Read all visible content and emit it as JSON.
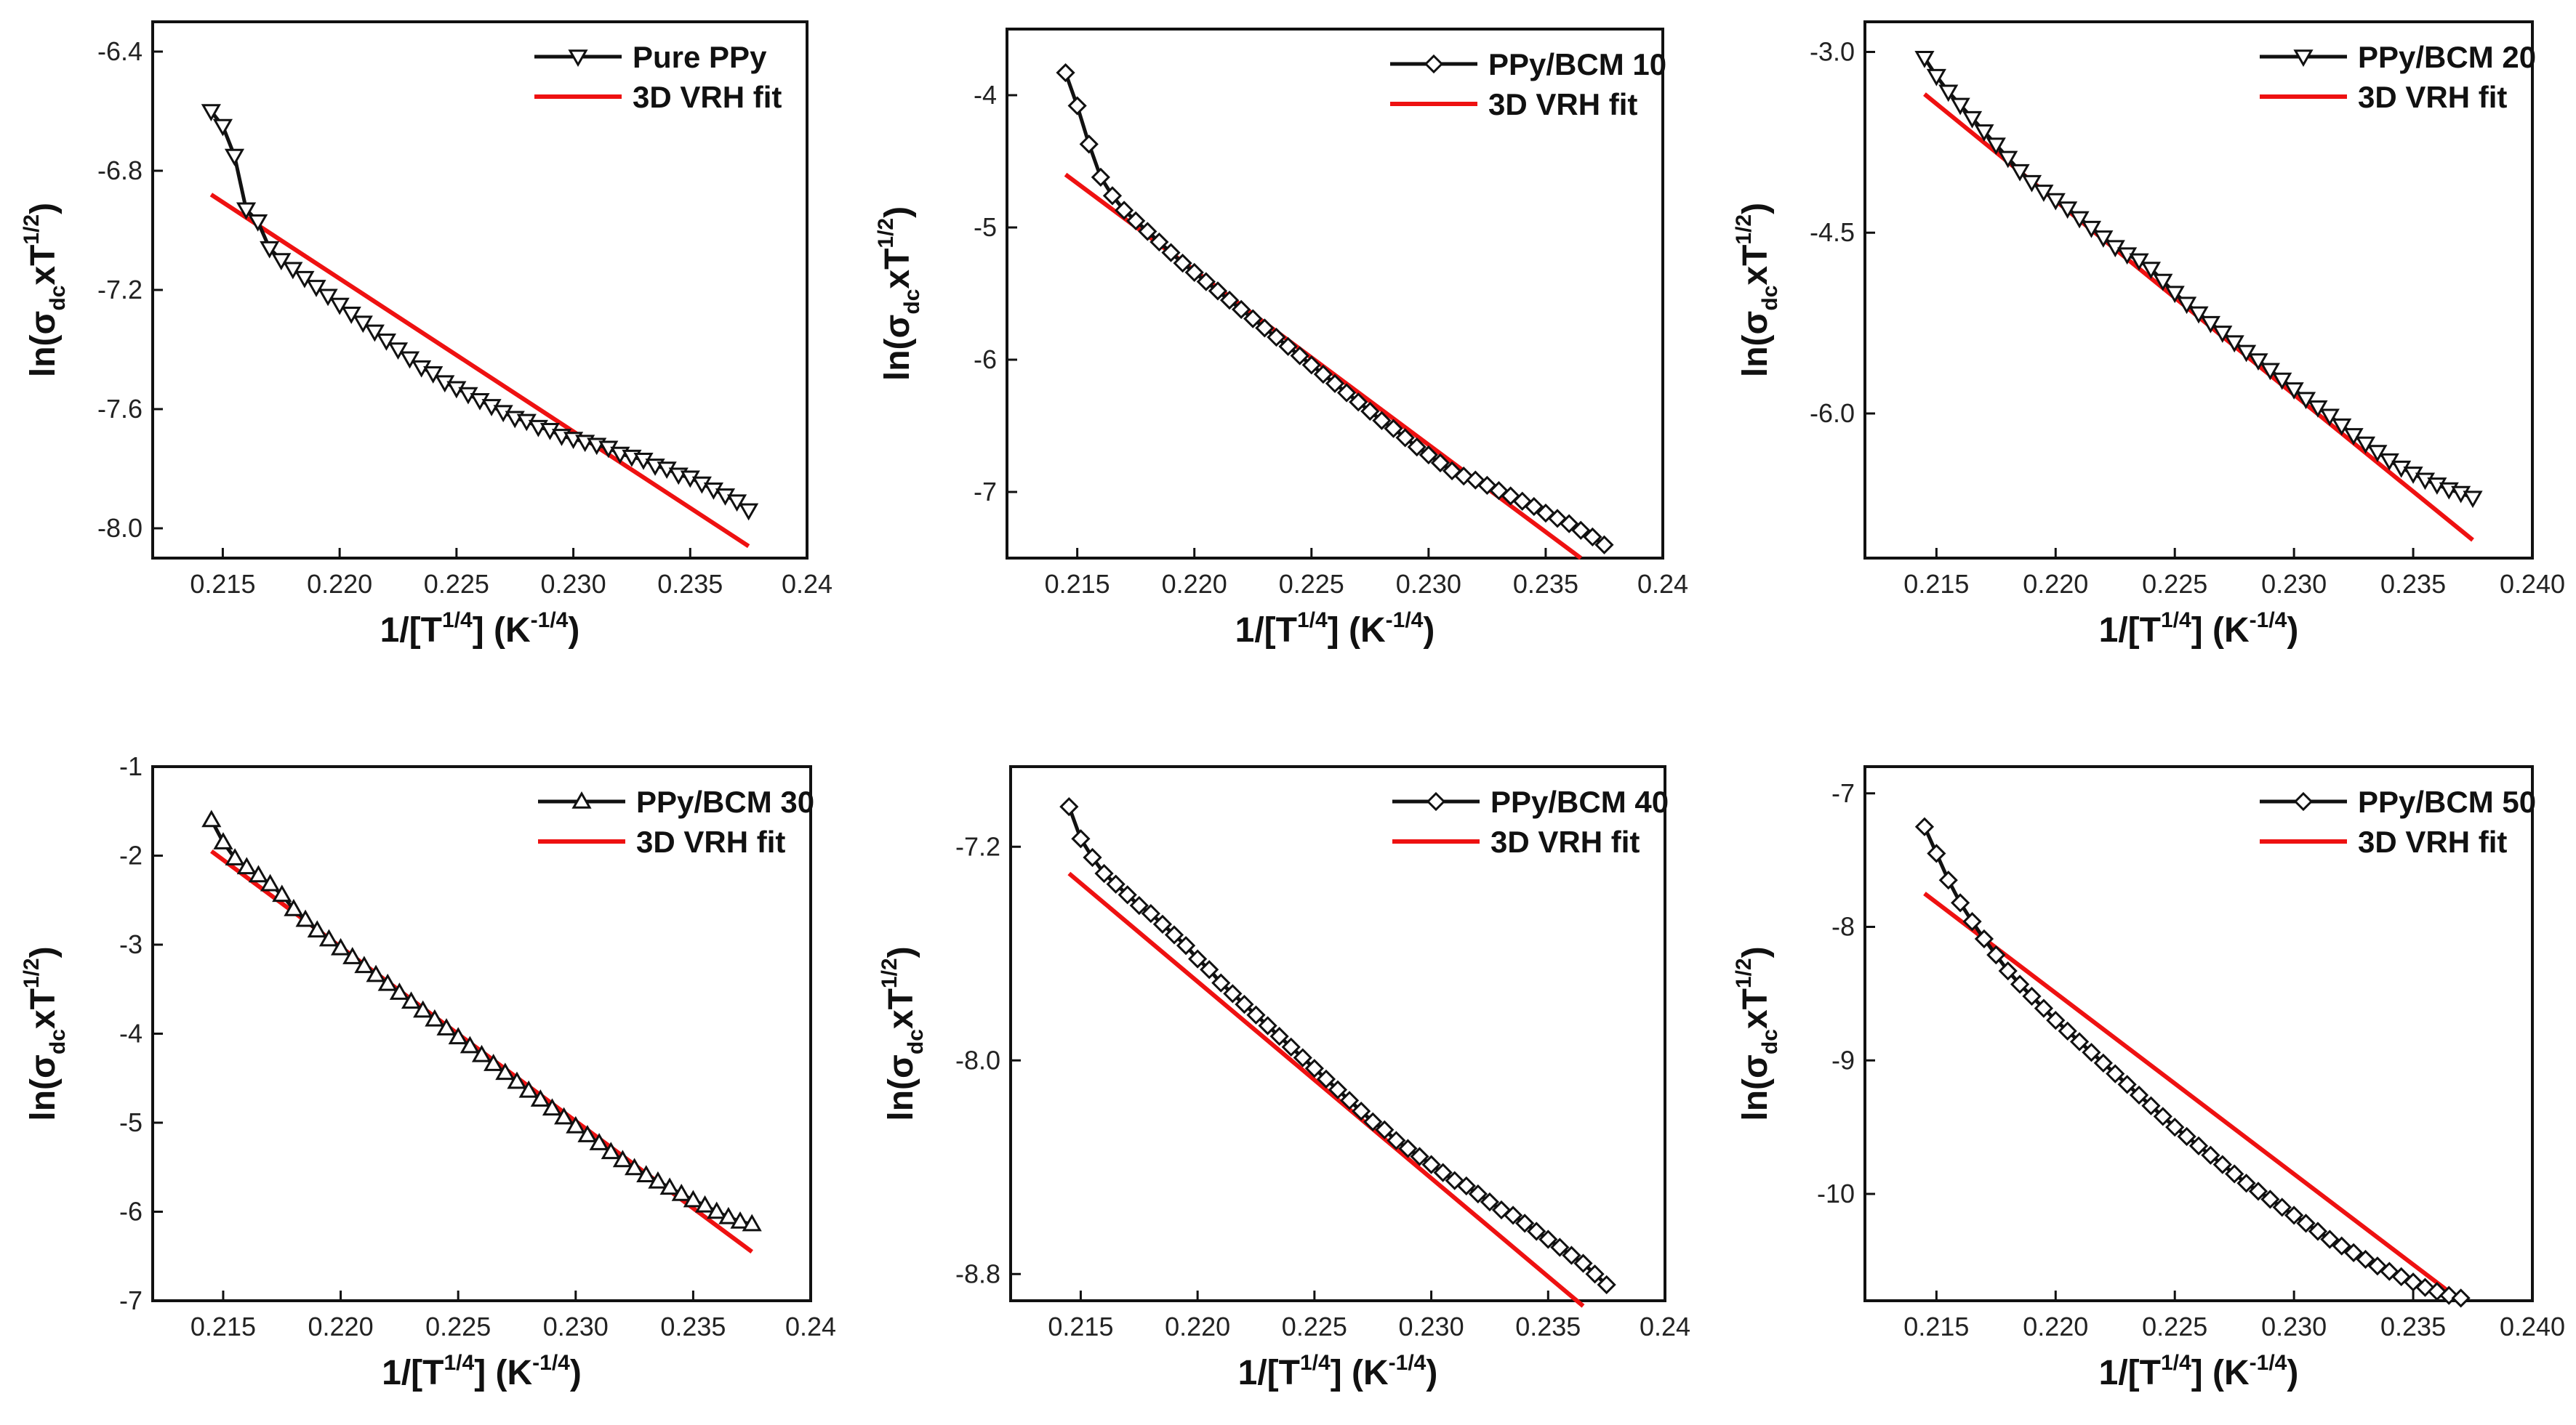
{
  "figure": {
    "xlabel_main": "1/[T",
    "xlabel_sup1": "1/4",
    "xlabel_mid": "] (K",
    "xlabel_sup2": "-1/4",
    "xlabel_end": ")",
    "ylabel_main": "ln(σ",
    "ylabel_sub": "dc",
    "ylabel_mid": "xT",
    "ylabel_sup": "1/2",
    "ylabel_end": ")"
  },
  "colors": {
    "data_line": "#111111",
    "fit_line": "#ee1111",
    "axis": "#111111"
  },
  "chart_data": [
    {
      "type": "line",
      "xlim": [
        0.212,
        0.24
      ],
      "ylim": [
        -8.1,
        -6.3
      ],
      "xticks": [
        0.215,
        0.22,
        0.225,
        0.23,
        0.235,
        0.24
      ],
      "xtick_labels": [
        "0.215",
        "0.220",
        "0.225",
        "0.230",
        "0.235",
        "0.24"
      ],
      "yticks": [
        -6.4,
        -6.8,
        -7.2,
        -7.6,
        -8.0
      ],
      "ytick_labels": [
        "-6.4",
        "-6.8",
        "-7.2",
        "-7.6",
        "-8.0"
      ],
      "marker": "triangle-down",
      "series": [
        {
          "name": "Pure PPy",
          "x": [
            0.2145,
            0.215,
            0.2155,
            0.216,
            0.2165,
            0.217,
            0.2175,
            0.218,
            0.2185,
            0.219,
            0.2195,
            0.22,
            0.2205,
            0.221,
            0.2215,
            0.222,
            0.2225,
            0.223,
            0.2235,
            0.224,
            0.2245,
            0.225,
            0.2255,
            0.226,
            0.2265,
            0.227,
            0.2275,
            0.228,
            0.2285,
            0.229,
            0.2295,
            0.23,
            0.2305,
            0.231,
            0.2315,
            0.232,
            0.2325,
            0.233,
            0.2335,
            0.234,
            0.2345,
            0.235,
            0.2355,
            0.236,
            0.2365,
            0.237,
            0.2375
          ],
          "y": [
            -6.6,
            -6.65,
            -6.75,
            -6.93,
            -6.97,
            -7.06,
            -7.1,
            -7.13,
            -7.16,
            -7.19,
            -7.22,
            -7.25,
            -7.28,
            -7.31,
            -7.34,
            -7.37,
            -7.4,
            -7.43,
            -7.46,
            -7.48,
            -7.51,
            -7.53,
            -7.55,
            -7.57,
            -7.59,
            -7.61,
            -7.63,
            -7.64,
            -7.66,
            -7.67,
            -7.69,
            -7.7,
            -7.71,
            -7.72,
            -7.73,
            -7.75,
            -7.76,
            -7.77,
            -7.79,
            -7.8,
            -7.82,
            -7.83,
            -7.85,
            -7.87,
            -7.89,
            -7.91,
            -7.94
          ]
        },
        {
          "name": "3D VRH fit",
          "x": [
            0.2145,
            0.2375
          ],
          "y": [
            -6.88,
            -8.06
          ]
        }
      ]
    },
    {
      "type": "line",
      "xlim": [
        0.212,
        0.24
      ],
      "ylim": [
        -7.5,
        -3.5
      ],
      "xticks": [
        0.215,
        0.22,
        0.225,
        0.23,
        0.235,
        0.24
      ],
      "xtick_labels": [
        "0.215",
        "0.220",
        "0.225",
        "0.230",
        "0.235",
        "0.24"
      ],
      "yticks": [
        -4,
        -5,
        -6,
        -7
      ],
      "ytick_labels": [
        "-4",
        "-5",
        "-6",
        "-7"
      ],
      "marker": "diamond",
      "series": [
        {
          "name": "PPy/BCM 10",
          "x": [
            0.2145,
            0.215,
            0.2155,
            0.216,
            0.2165,
            0.217,
            0.2175,
            0.218,
            0.2185,
            0.219,
            0.2195,
            0.22,
            0.2205,
            0.221,
            0.2215,
            0.222,
            0.2225,
            0.223,
            0.2235,
            0.224,
            0.2245,
            0.225,
            0.2255,
            0.226,
            0.2265,
            0.227,
            0.2275,
            0.228,
            0.2285,
            0.229,
            0.2295,
            0.23,
            0.2305,
            0.231,
            0.2315,
            0.232,
            0.2325,
            0.233,
            0.2335,
            0.234,
            0.2345,
            0.235,
            0.2355,
            0.236,
            0.2365,
            0.237,
            0.2375
          ],
          "y": [
            -3.83,
            -4.08,
            -4.37,
            -4.62,
            -4.76,
            -4.87,
            -4.95,
            -5.03,
            -5.11,
            -5.19,
            -5.27,
            -5.34,
            -5.41,
            -5.48,
            -5.55,
            -5.62,
            -5.69,
            -5.76,
            -5.83,
            -5.9,
            -5.97,
            -6.04,
            -6.11,
            -6.18,
            -6.25,
            -6.32,
            -6.39,
            -6.46,
            -6.52,
            -6.59,
            -6.66,
            -6.72,
            -6.78,
            -6.84,
            -6.88,
            -6.91,
            -6.95,
            -6.99,
            -7.03,
            -7.07,
            -7.11,
            -7.16,
            -7.2,
            -7.24,
            -7.29,
            -7.34,
            -7.4
          ]
        },
        {
          "name": "3D VRH fit",
          "x": [
            0.2145,
            0.2365
          ],
          "y": [
            -4.6,
            -7.5
          ]
        }
      ]
    },
    {
      "type": "line",
      "xlim": [
        0.212,
        0.24
      ],
      "ylim": [
        -7.2,
        -2.75
      ],
      "xticks": [
        0.215,
        0.22,
        0.225,
        0.23,
        0.235,
        0.24
      ],
      "xtick_labels": [
        "0.215",
        "0.220",
        "0.225",
        "0.230",
        "0.235",
        "0.240"
      ],
      "yticks": [
        -3.0,
        -4.5,
        -6.0
      ],
      "ytick_labels": [
        "-3.0",
        "-4.5",
        "-6.0"
      ],
      "marker": "triangle-down",
      "series": [
        {
          "name": "PPy/BCM 20",
          "x": [
            0.2145,
            0.215,
            0.2155,
            0.216,
            0.2165,
            0.217,
            0.2175,
            0.218,
            0.2185,
            0.219,
            0.2195,
            0.22,
            0.2205,
            0.221,
            0.2215,
            0.222,
            0.2225,
            0.223,
            0.2235,
            0.224,
            0.2245,
            0.225,
            0.2255,
            0.226,
            0.2265,
            0.227,
            0.2275,
            0.228,
            0.2285,
            0.229,
            0.2295,
            0.23,
            0.2305,
            0.231,
            0.2315,
            0.232,
            0.2325,
            0.233,
            0.2335,
            0.234,
            0.2345,
            0.235,
            0.2355,
            0.236,
            0.2365,
            0.237,
            0.2375
          ],
          "y": [
            -3.05,
            -3.2,
            -3.33,
            -3.44,
            -3.55,
            -3.66,
            -3.77,
            -3.88,
            -3.99,
            -4.08,
            -4.16,
            -4.23,
            -4.3,
            -4.38,
            -4.46,
            -4.54,
            -4.62,
            -4.68,
            -4.73,
            -4.8,
            -4.9,
            -5.0,
            -5.09,
            -5.17,
            -5.25,
            -5.33,
            -5.41,
            -5.49,
            -5.56,
            -5.64,
            -5.72,
            -5.8,
            -5.88,
            -5.95,
            -6.02,
            -6.1,
            -6.18,
            -6.25,
            -6.32,
            -6.39,
            -6.45,
            -6.5,
            -6.55,
            -6.59,
            -6.63,
            -6.66,
            -6.7
          ]
        },
        {
          "name": "3D VRH fit",
          "x": [
            0.2145,
            0.2375
          ],
          "y": [
            -3.35,
            -7.05
          ]
        }
      ]
    },
    {
      "type": "line",
      "xlim": [
        0.212,
        0.24
      ],
      "ylim": [
        -7.0,
        -1.0
      ],
      "xticks": [
        0.215,
        0.22,
        0.225,
        0.23,
        0.235,
        0.24
      ],
      "xtick_labels": [
        "0.215",
        "0.220",
        "0.225",
        "0.230",
        "0.235",
        "0.24"
      ],
      "yticks": [
        -1,
        -2,
        -3,
        -4,
        -5,
        -6,
        -7
      ],
      "ytick_labels": [
        "-1",
        "-2",
        "-3",
        "-4",
        "-5",
        "-6",
        "-7"
      ],
      "marker": "triangle-up",
      "series": [
        {
          "name": "PPy/BCM 30",
          "x": [
            0.2145,
            0.215,
            0.2155,
            0.216,
            0.2165,
            0.217,
            0.2175,
            0.218,
            0.2185,
            0.219,
            0.2195,
            0.22,
            0.2205,
            0.221,
            0.2215,
            0.222,
            0.2225,
            0.223,
            0.2235,
            0.224,
            0.2245,
            0.225,
            0.2255,
            0.226,
            0.2265,
            0.227,
            0.2275,
            0.228,
            0.2285,
            0.229,
            0.2295,
            0.23,
            0.2305,
            0.231,
            0.2315,
            0.232,
            0.2325,
            0.233,
            0.2335,
            0.234,
            0.2345,
            0.235,
            0.2355,
            0.236,
            0.2365,
            0.237,
            0.2375
          ],
          "y": [
            -1.6,
            -1.85,
            -2.03,
            -2.13,
            -2.22,
            -2.32,
            -2.44,
            -2.6,
            -2.72,
            -2.84,
            -2.94,
            -3.04,
            -3.14,
            -3.24,
            -3.34,
            -3.44,
            -3.54,
            -3.64,
            -3.74,
            -3.84,
            -3.94,
            -4.04,
            -4.14,
            -4.24,
            -4.34,
            -4.44,
            -4.54,
            -4.64,
            -4.74,
            -4.84,
            -4.94,
            -5.04,
            -5.14,
            -5.23,
            -5.33,
            -5.42,
            -5.51,
            -5.59,
            -5.66,
            -5.73,
            -5.8,
            -5.87,
            -5.93,
            -6.0,
            -6.06,
            -6.11,
            -6.14
          ]
        },
        {
          "name": "3D VRH fit",
          "x": [
            0.2145,
            0.2375
          ],
          "y": [
            -1.95,
            -6.45
          ]
        }
      ]
    },
    {
      "type": "line",
      "xlim": [
        0.212,
        0.24
      ],
      "ylim": [
        -8.9,
        -6.9
      ],
      "xticks": [
        0.215,
        0.22,
        0.225,
        0.23,
        0.235,
        0.24
      ],
      "xtick_labels": [
        "0.215",
        "0.220",
        "0.225",
        "0.230",
        "0.235",
        "0.24"
      ],
      "yticks": [
        -7.2,
        -8.0,
        -8.8
      ],
      "ytick_labels": [
        "-7.2",
        "-8.0",
        "-8.8"
      ],
      "marker": "diamond",
      "series": [
        {
          "name": "PPy/BCM 40",
          "x": [
            0.2145,
            0.215,
            0.2155,
            0.216,
            0.2165,
            0.217,
            0.2175,
            0.218,
            0.2185,
            0.219,
            0.2195,
            0.22,
            0.2205,
            0.221,
            0.2215,
            0.222,
            0.2225,
            0.223,
            0.2235,
            0.224,
            0.2245,
            0.225,
            0.2255,
            0.226,
            0.2265,
            0.227,
            0.2275,
            0.228,
            0.2285,
            0.229,
            0.2295,
            0.23,
            0.2305,
            0.231,
            0.2315,
            0.232,
            0.2325,
            0.233,
            0.2335,
            0.234,
            0.2345,
            0.235,
            0.2355,
            0.236,
            0.2365,
            0.237,
            0.2375
          ],
          "y": [
            -7.05,
            -7.17,
            -7.24,
            -7.3,
            -7.34,
            -7.38,
            -7.42,
            -7.45,
            -7.49,
            -7.53,
            -7.57,
            -7.62,
            -7.66,
            -7.71,
            -7.75,
            -7.79,
            -7.83,
            -7.87,
            -7.91,
            -7.95,
            -7.99,
            -8.03,
            -8.07,
            -8.11,
            -8.15,
            -8.19,
            -8.23,
            -8.26,
            -8.3,
            -8.33,
            -8.36,
            -8.39,
            -8.42,
            -8.45,
            -8.47,
            -8.5,
            -8.53,
            -8.56,
            -8.58,
            -8.61,
            -8.64,
            -8.67,
            -8.7,
            -8.73,
            -8.76,
            -8.8,
            -8.84
          ]
        },
        {
          "name": "3D VRH fit",
          "x": [
            0.2145,
            0.2365
          ],
          "y": [
            -7.3,
            -8.92
          ]
        }
      ]
    },
    {
      "type": "line",
      "xlim": [
        0.212,
        0.24
      ],
      "ylim": [
        -10.8,
        -6.8
      ],
      "xticks": [
        0.215,
        0.22,
        0.225,
        0.23,
        0.235,
        0.24
      ],
      "xtick_labels": [
        "0.215",
        "0.220",
        "0.225",
        "0.230",
        "0.235",
        "0.240"
      ],
      "yticks": [
        -7,
        -8,
        -9,
        -10
      ],
      "ytick_labels": [
        "-7",
        "-8",
        "-9",
        "-10"
      ],
      "marker": "diamond",
      "series": [
        {
          "name": "PPy/BCM 50",
          "x": [
            0.2145,
            0.215,
            0.2155,
            0.216,
            0.2165,
            0.217,
            0.2175,
            0.218,
            0.2185,
            0.219,
            0.2195,
            0.22,
            0.2205,
            0.221,
            0.2215,
            0.222,
            0.2225,
            0.223,
            0.2235,
            0.224,
            0.2245,
            0.225,
            0.2255,
            0.226,
            0.2265,
            0.227,
            0.2275,
            0.228,
            0.2285,
            0.229,
            0.2295,
            0.23,
            0.2305,
            0.231,
            0.2315,
            0.232,
            0.2325,
            0.233,
            0.2335,
            0.234,
            0.2345,
            0.235,
            0.2355,
            0.236,
            0.2365,
            0.237
          ],
          "y": [
            -7.25,
            -7.45,
            -7.65,
            -7.82,
            -7.96,
            -8.09,
            -8.21,
            -8.33,
            -8.43,
            -8.52,
            -8.61,
            -8.7,
            -8.78,
            -8.86,
            -8.94,
            -9.02,
            -9.1,
            -9.18,
            -9.26,
            -9.34,
            -9.42,
            -9.5,
            -9.57,
            -9.64,
            -9.71,
            -9.78,
            -9.85,
            -9.92,
            -9.98,
            -10.04,
            -10.1,
            -10.16,
            -10.22,
            -10.28,
            -10.34,
            -10.39,
            -10.44,
            -10.49,
            -10.54,
            -10.58,
            -10.62,
            -10.66,
            -10.7,
            -10.73,
            -10.76,
            -10.78
          ]
        },
        {
          "name": "3D VRH fit",
          "x": [
            0.2145,
            0.237
          ],
          "y": [
            -7.75,
            -10.8
          ]
        }
      ]
    }
  ]
}
